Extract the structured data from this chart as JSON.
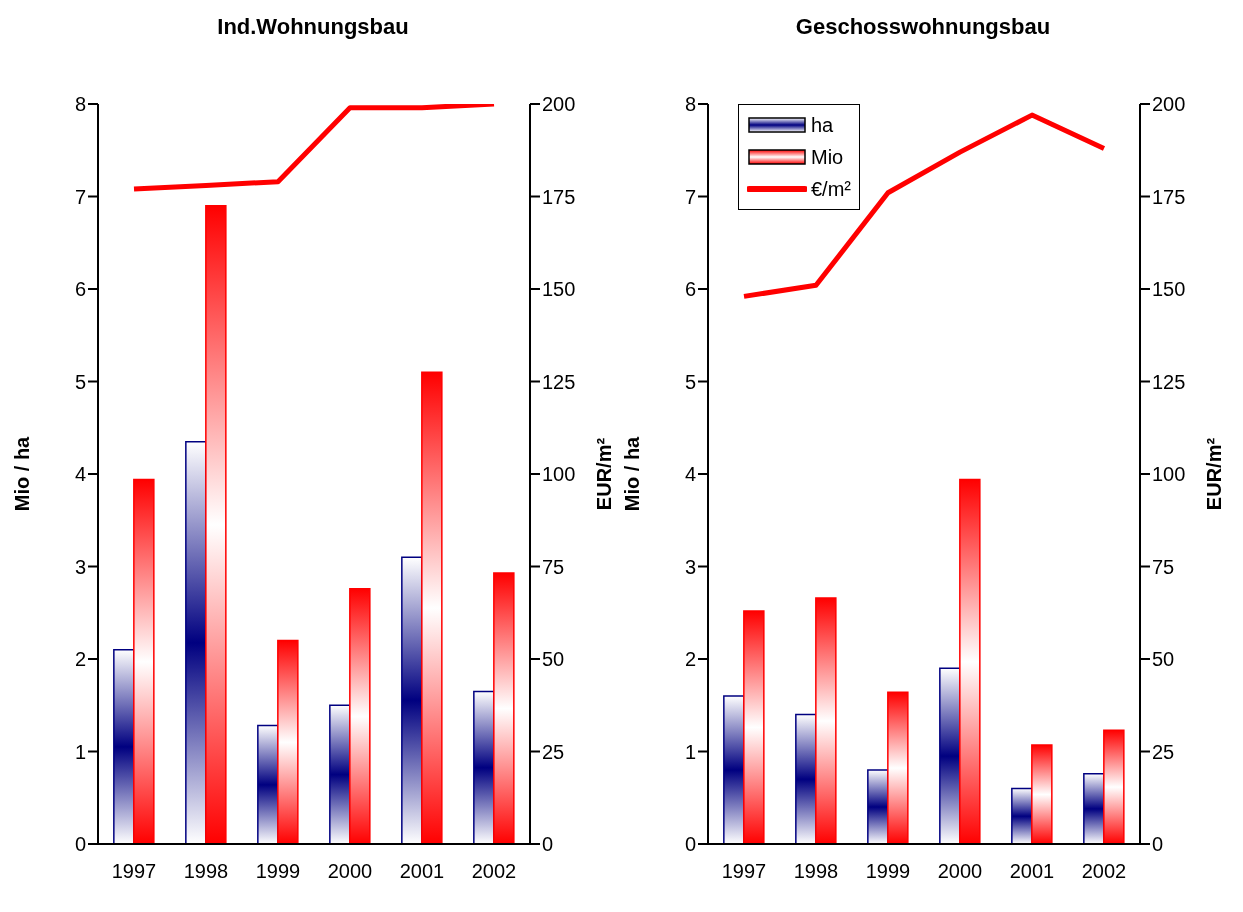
{
  "chart_data": [
    {
      "type": "bar",
      "title": "Ind.Wohnungsbau",
      "ylabel": "Mio / ha",
      "y2label": "EUR/m²",
      "categories": [
        "1997",
        "1998",
        "1999",
        "2000",
        "2001",
        "2002"
      ],
      "series": [
        {
          "color": "#000080",
          "values": [
            2.1,
            4.35,
            1.28,
            1.5,
            3.1,
            1.65
          ]
        },
        {
          "color": "#ff0000",
          "values": [
            3.94,
            6.9,
            2.2,
            2.76,
            5.1,
            2.93
          ]
        },
        {
          "type": "line",
          "axis": "y2",
          "color": "#ff0000",
          "values": [
            177,
            178,
            179,
            199,
            199,
            200
          ]
        }
      ],
      "ylim": [
        0,
        8
      ],
      "yticks": [
        0,
        1,
        2,
        3,
        4,
        5,
        6,
        7,
        8
      ],
      "y2lim": [
        0,
        200
      ],
      "y2ticks": [
        0,
        25,
        50,
        75,
        100,
        125,
        150,
        175,
        200
      ],
      "grid": false,
      "legend": false,
      "marker": "none"
    },
    {
      "type": "bar",
      "title": "Geschosswohnungsbau",
      "ylabel": "Mio / ha",
      "y2label": "EUR/m²",
      "categories": [
        "1997",
        "1998",
        "1999",
        "2000",
        "2001",
        "2002"
      ],
      "series": [
        {
          "name": "ha",
          "color": "#000080",
          "values": [
            1.6,
            1.4,
            0.8,
            1.9,
            0.6,
            0.76
          ]
        },
        {
          "name": "Mio",
          "color": "#ff0000",
          "values": [
            2.52,
            2.66,
            1.64,
            3.94,
            1.07,
            1.23
          ]
        },
        {
          "name": "€/m²",
          "type": "line",
          "axis": "y2",
          "color": "#ff0000",
          "values": [
            148,
            151,
            176,
            187,
            197,
            188
          ]
        }
      ],
      "ylim": [
        0,
        8
      ],
      "yticks": [
        0,
        1,
        2,
        3,
        4,
        5,
        6,
        7,
        8
      ],
      "y2lim": [
        0,
        200
      ],
      "y2ticks": [
        0,
        25,
        50,
        75,
        100,
        125,
        150,
        175,
        200
      ],
      "grid": false,
      "legend": "top left",
      "marker": "none"
    }
  ]
}
